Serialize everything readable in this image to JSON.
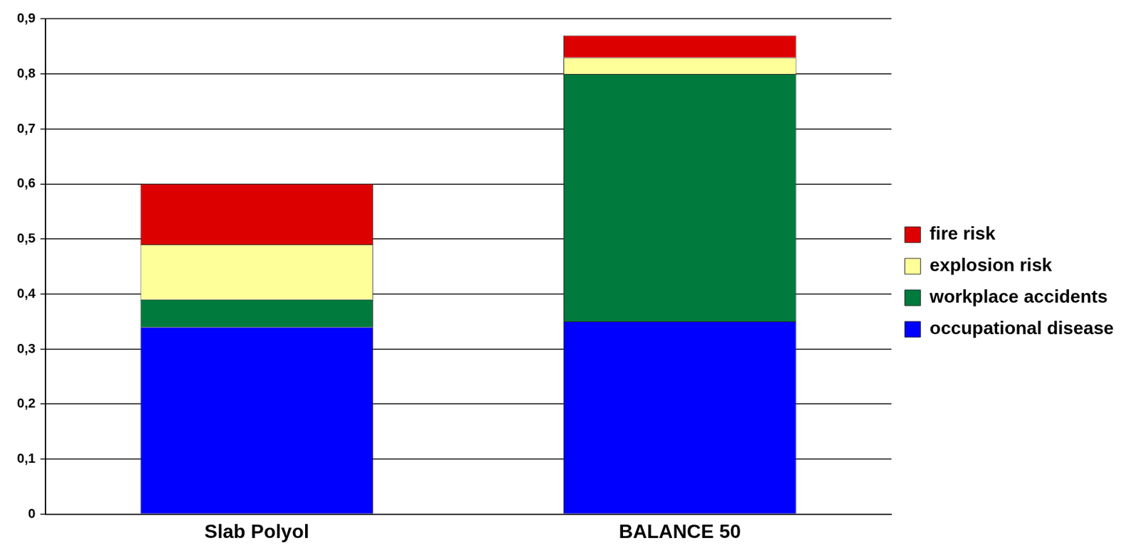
{
  "chart_data": {
    "type": "bar",
    "stacked": true,
    "grid": true,
    "legend": "right",
    "categories": [
      "Slab Polyol",
      "BALANCE 50"
    ],
    "series": [
      {
        "name": "occupational disease",
        "color": "#0000ff",
        "values": [
          0.34,
          0.35
        ]
      },
      {
        "name": "workplace accidents",
        "color": "#007a3d",
        "values": [
          0.05,
          0.45
        ]
      },
      {
        "name": "explosion risk",
        "color": "#ffff99",
        "values": [
          0.1,
          0.03
        ]
      },
      {
        "name": "fire risk",
        "color": "#dd0000",
        "values": [
          0.11,
          0.04
        ]
      }
    ],
    "ylim": [
      0,
      0.9
    ],
    "yticks": [
      0,
      {
        "value": 0.1,
        "label": "0,1"
      },
      {
        "value": 0.2,
        "label": "0,2"
      },
      {
        "value": 0.3,
        "label": "0,3"
      },
      {
        "value": 0.4,
        "label": "0,4"
      },
      {
        "value": 0.5,
        "label": "0,5"
      },
      {
        "value": 0.6,
        "label": "0,6"
      },
      {
        "value": 0.7,
        "label": "0,7"
      },
      {
        "value": 0.8,
        "label": "0,8"
      },
      {
        "value": 0.9,
        "label": "0,9"
      }
    ]
  }
}
